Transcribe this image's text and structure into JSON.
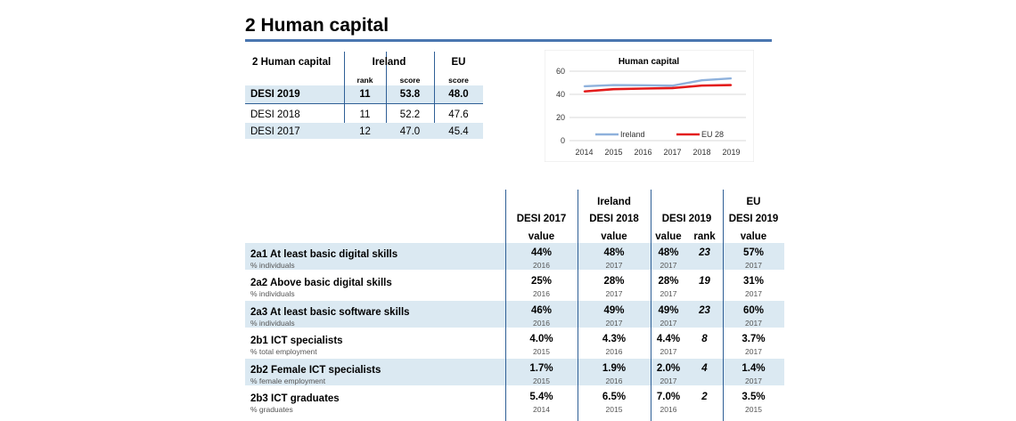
{
  "section_title": "2 Human capital",
  "summary": {
    "header": "2 Human capital",
    "col_ireland": "Ireland",
    "col_eu": "EU",
    "sub_rank": "rank",
    "sub_score": "score",
    "sub_eu_score": "score",
    "rows": [
      {
        "label": "DESI 2019",
        "rank": "11",
        "score": "53.8",
        "eu": "48.0"
      },
      {
        "label": "DESI 2018",
        "rank": "11",
        "score": "52.2",
        "eu": "47.6"
      },
      {
        "label": "DESI 2017",
        "rank": "12",
        "score": "47.0",
        "eu": "45.4"
      }
    ]
  },
  "chart_data": {
    "type": "line",
    "title": "Human capital",
    "x": [
      "2014",
      "2015",
      "2016",
      "2017",
      "2018",
      "2019"
    ],
    "ylim": [
      0,
      60
    ],
    "yticks": [
      "0",
      "20",
      "40",
      "60"
    ],
    "grid": true,
    "legend_position": "bottom",
    "series": [
      {
        "name": "Ireland",
        "color": "#8eb1dc",
        "values": [
          47.0,
          48.0,
          47.8,
          47.5,
          52.2,
          53.8
        ]
      },
      {
        "name": "EU 28",
        "color": "#e31b1b",
        "values": [
          42.5,
          44.5,
          45.0,
          45.4,
          47.6,
          48.0
        ]
      }
    ]
  },
  "indicators": {
    "group_ireland": "Ireland",
    "group_eu": "EU",
    "col_desi2017": "DESI 2017",
    "col_desi2018": "DESI 2018",
    "col_desi2019": "DESI 2019",
    "col_eu2019": "DESI 2019",
    "sub_value": "value",
    "sub_rank": "rank",
    "rows": [
      {
        "label": "2a1 At least basic digital skills",
        "unit": "% individuals",
        "v2017": "44%",
        "y2017": "2016",
        "v2018": "48%",
        "y2018": "2017",
        "v2019": "48%",
        "rank": "23",
        "y2019": "2017",
        "eu": "57%",
        "yeu": "2017"
      },
      {
        "label": "2a2 Above basic digital skills",
        "unit": "% individuals",
        "v2017": "25%",
        "y2017": "2016",
        "v2018": "28%",
        "y2018": "2017",
        "v2019": "28%",
        "rank": "19",
        "y2019": "2017",
        "eu": "31%",
        "yeu": "2017"
      },
      {
        "label": "2a3 At least basic software skills",
        "unit": "% individuals",
        "v2017": "46%",
        "y2017": "2016",
        "v2018": "49%",
        "y2018": "2017",
        "v2019": "49%",
        "rank": "23",
        "y2019": "2017",
        "eu": "60%",
        "yeu": "2017"
      },
      {
        "label": "2b1 ICT specialists",
        "unit": "% total employment",
        "v2017": "4.0%",
        "y2017": "2015",
        "v2018": "4.3%",
        "y2018": "2016",
        "v2019": "4.4%",
        "rank": "8",
        "y2019": "2017",
        "eu": "3.7%",
        "yeu": "2017"
      },
      {
        "label": "2b2 Female ICT specialists",
        "unit": "% female employment",
        "v2017": "1.7%",
        "y2017": "2015",
        "v2018": "1.9%",
        "y2018": "2016",
        "v2019": "2.0%",
        "rank": "4",
        "y2019": "2017",
        "eu": "1.4%",
        "yeu": "2017"
      },
      {
        "label": "2b3 ICT graduates",
        "unit": "% graduates",
        "v2017": "5.4%",
        "y2017": "2014",
        "v2018": "6.5%",
        "y2018": "2015",
        "v2019": "7.0%",
        "rank": "2",
        "y2019": "2016",
        "eu": "3.5%",
        "yeu": "2015"
      }
    ]
  }
}
